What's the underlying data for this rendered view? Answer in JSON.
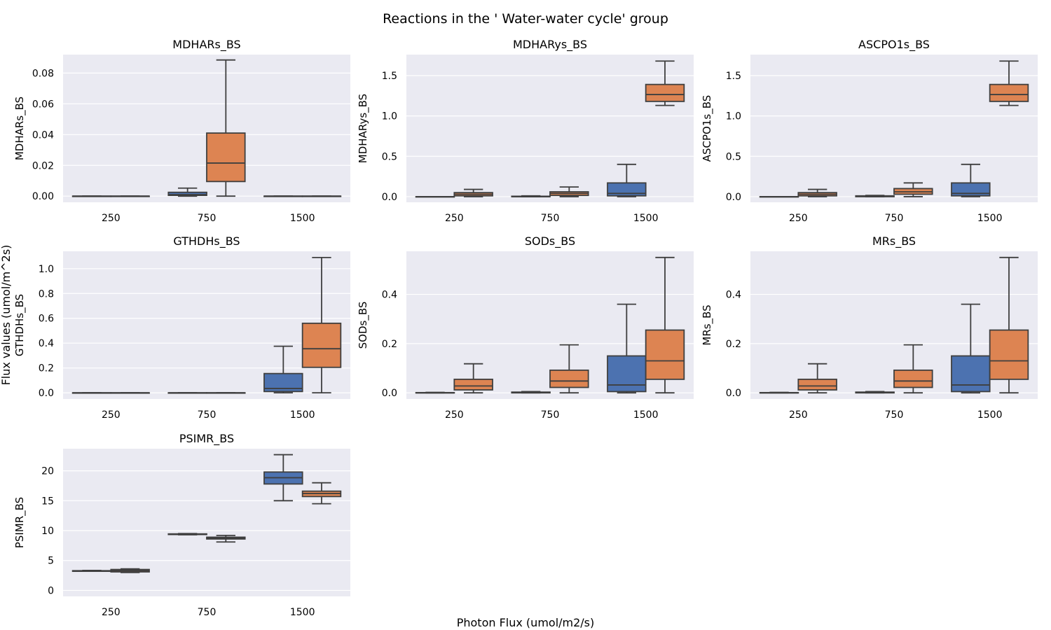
{
  "suptitle": "Reactions in the ' Water-water cycle' group",
  "xlabel": "Photon Flux (umol/m2/s)",
  "ylabel": "Flux values (umol/m^2s)",
  "colors": {
    "blue": "#4c72b0",
    "orange": "#dd8452",
    "panel_bg": "#eaeaf2",
    "grid": "#ffffff",
    "line": "#3f3f3f"
  },
  "chart_data": [
    {
      "type": "box",
      "title": "MDHARs_BS",
      "ylabel": "MDHARs_BS",
      "categories": [
        "250",
        "750",
        "1500"
      ],
      "ylim": [
        -0.004,
        0.092
      ],
      "yticks": [
        0.0,
        0.02,
        0.04,
        0.06,
        0.08
      ],
      "yticklabels": [
        "0.00",
        "0.02",
        "0.04",
        "0.06",
        "0.08"
      ],
      "boxes": [
        [
          {
            "min": 0,
            "q1": 0,
            "median": 0,
            "q3": 0,
            "max": 0
          },
          {
            "min": 0,
            "q1": 0,
            "median": 0,
            "q3": 0,
            "max": 0
          }
        ],
        [
          {
            "min": 0,
            "q1": 0.0005,
            "median": 0.001,
            "q3": 0.0025,
            "max": 0.0052
          },
          {
            "min": 0,
            "q1": 0.0095,
            "median": 0.0215,
            "q3": 0.041,
            "max": 0.0885
          }
        ],
        [
          {
            "min": 0,
            "q1": 0,
            "median": 0,
            "q3": 0,
            "max": 0
          },
          {
            "min": 0,
            "q1": 0,
            "median": 0,
            "q3": 0,
            "max": 0
          }
        ]
      ]
    },
    {
      "type": "box",
      "title": "MDHARys_BS",
      "ylabel": "MDHARys_BS",
      "categories": [
        "250",
        "750",
        "1500"
      ],
      "ylim": [
        -0.07,
        1.76
      ],
      "yticks": [
        0.0,
        0.5,
        1.0,
        1.5
      ],
      "yticklabels": [
        "0.0",
        "0.5",
        "1.0",
        "1.5"
      ],
      "boxes": [
        [
          {
            "min": 0,
            "q1": 0,
            "median": 0,
            "q3": 0,
            "max": 0
          },
          {
            "min": 0,
            "q1": 0.01,
            "median": 0.03,
            "q3": 0.05,
            "max": 0.09
          }
        ],
        [
          {
            "min": 0,
            "q1": 0,
            "median": 0,
            "q3": 0.005,
            "max": 0.01
          },
          {
            "min": 0,
            "q1": 0.015,
            "median": 0.04,
            "q3": 0.06,
            "max": 0.12
          }
        ],
        [
          {
            "min": 0,
            "q1": 0.01,
            "median": 0.04,
            "q3": 0.17,
            "max": 0.4
          },
          {
            "min": 1.13,
            "q1": 1.18,
            "median": 1.265,
            "q3": 1.39,
            "max": 1.68
          }
        ]
      ]
    },
    {
      "type": "box",
      "title": "ASCPO1s_BS",
      "ylabel": "ASCPO1s_BS",
      "categories": [
        "250",
        "750",
        "1500"
      ],
      "ylim": [
        -0.07,
        1.76
      ],
      "yticks": [
        0.0,
        0.5,
        1.0,
        1.5
      ],
      "yticklabels": [
        "0.0",
        "0.5",
        "1.0",
        "1.5"
      ],
      "boxes": [
        [
          {
            "min": 0,
            "q1": 0,
            "median": 0,
            "q3": 0,
            "max": 0
          },
          {
            "min": 0,
            "q1": 0.01,
            "median": 0.03,
            "q3": 0.05,
            "max": 0.09
          }
        ],
        [
          {
            "min": 0,
            "q1": 0,
            "median": 0.005,
            "q3": 0.01,
            "max": 0.015
          },
          {
            "min": 0,
            "q1": 0.03,
            "median": 0.06,
            "q3": 0.1,
            "max": 0.17
          }
        ],
        [
          {
            "min": 0,
            "q1": 0.01,
            "median": 0.04,
            "q3": 0.17,
            "max": 0.4
          },
          {
            "min": 1.13,
            "q1": 1.18,
            "median": 1.265,
            "q3": 1.39,
            "max": 1.68
          }
        ]
      ]
    },
    {
      "type": "box",
      "title": "GTHDHs_BS",
      "ylabel": "GTHDHs_BS",
      "categories": [
        "250",
        "750",
        "1500"
      ],
      "ylim": [
        -0.05,
        1.14
      ],
      "yticks": [
        0.0,
        0.2,
        0.4,
        0.6,
        0.8,
        1.0
      ],
      "yticklabels": [
        "0.0",
        "0.2",
        "0.4",
        "0.6",
        "0.8",
        "1.0"
      ],
      "boxes": [
        [
          {
            "min": 0,
            "q1": 0,
            "median": 0,
            "q3": 0,
            "max": 0
          },
          {
            "min": 0,
            "q1": 0,
            "median": 0,
            "q3": 0,
            "max": 0
          }
        ],
        [
          {
            "min": 0,
            "q1": 0,
            "median": 0,
            "q3": 0,
            "max": 0
          },
          {
            "min": 0,
            "q1": 0,
            "median": 0,
            "q3": 0,
            "max": 0
          }
        ],
        [
          {
            "min": 0,
            "q1": 0.01,
            "median": 0.035,
            "q3": 0.155,
            "max": 0.375
          },
          {
            "min": 0,
            "q1": 0.205,
            "median": 0.355,
            "q3": 0.56,
            "max": 1.09
          }
        ]
      ]
    },
    {
      "type": "box",
      "title": "SODs_BS",
      "ylabel": "SODs_BS",
      "categories": [
        "250",
        "750",
        "1500"
      ],
      "ylim": [
        -0.025,
        0.575
      ],
      "yticks": [
        0.0,
        0.2,
        0.4
      ],
      "yticklabels": [
        "0.0",
        "0.2",
        "0.4"
      ],
      "boxes": [
        [
          {
            "min": 0,
            "q1": 0,
            "median": 0,
            "q3": 0.001,
            "max": 0.002
          },
          {
            "min": 0,
            "q1": 0.012,
            "median": 0.028,
            "q3": 0.055,
            "max": 0.118
          }
        ],
        [
          {
            "min": 0,
            "q1": 0,
            "median": 0.001,
            "q3": 0.003,
            "max": 0.005
          },
          {
            "min": 0,
            "q1": 0.022,
            "median": 0.048,
            "q3": 0.092,
            "max": 0.195
          }
        ],
        [
          {
            "min": 0,
            "q1": 0.005,
            "median": 0.032,
            "q3": 0.15,
            "max": 0.36
          },
          {
            "min": 0,
            "q1": 0.055,
            "median": 0.13,
            "q3": 0.255,
            "max": 0.55
          }
        ]
      ]
    },
    {
      "type": "box",
      "title": "MRs_BS",
      "ylabel": "MRs_BS",
      "categories": [
        "250",
        "750",
        "1500"
      ],
      "ylim": [
        -0.025,
        0.575
      ],
      "yticks": [
        0.0,
        0.2,
        0.4
      ],
      "yticklabels": [
        "0.0",
        "0.2",
        "0.4"
      ],
      "boxes": [
        [
          {
            "min": 0,
            "q1": 0,
            "median": 0,
            "q3": 0.001,
            "max": 0.002
          },
          {
            "min": 0,
            "q1": 0.012,
            "median": 0.028,
            "q3": 0.055,
            "max": 0.118
          }
        ],
        [
          {
            "min": 0,
            "q1": 0,
            "median": 0.001,
            "q3": 0.003,
            "max": 0.005
          },
          {
            "min": 0,
            "q1": 0.022,
            "median": 0.048,
            "q3": 0.092,
            "max": 0.195
          }
        ],
        [
          {
            "min": 0,
            "q1": 0.005,
            "median": 0.032,
            "q3": 0.15,
            "max": 0.36
          },
          {
            "min": 0,
            "q1": 0.055,
            "median": 0.13,
            "q3": 0.255,
            "max": 0.55
          }
        ]
      ]
    },
    {
      "type": "box",
      "title": "PSIMR_BS",
      "ylabel": "PSIMR_BS",
      "categories": [
        "250",
        "750",
        "1500"
      ],
      "ylim": [
        -1.0,
        23.7
      ],
      "yticks": [
        0,
        5,
        10,
        15,
        20
      ],
      "yticklabels": [
        "0",
        "5",
        "10",
        "15",
        "20"
      ],
      "boxes": [
        [
          {
            "min": 3.2,
            "q1": 3.2,
            "median": 3.25,
            "q3": 3.3,
            "max": 3.35
          },
          {
            "min": 3.0,
            "q1": 3.1,
            "median": 3.3,
            "q3": 3.5,
            "max": 3.6
          }
        ],
        [
          {
            "min": 9.3,
            "q1": 9.35,
            "median": 9.4,
            "q3": 9.45,
            "max": 9.5
          },
          {
            "min": 8.1,
            "q1": 8.6,
            "median": 8.75,
            "q3": 8.9,
            "max": 9.2
          }
        ],
        [
          {
            "min": 15.0,
            "q1": 17.8,
            "median": 18.85,
            "q3": 19.8,
            "max": 22.7
          },
          {
            "min": 14.5,
            "q1": 15.7,
            "median": 16.2,
            "q3": 16.6,
            "max": 18.0
          }
        ]
      ]
    }
  ]
}
